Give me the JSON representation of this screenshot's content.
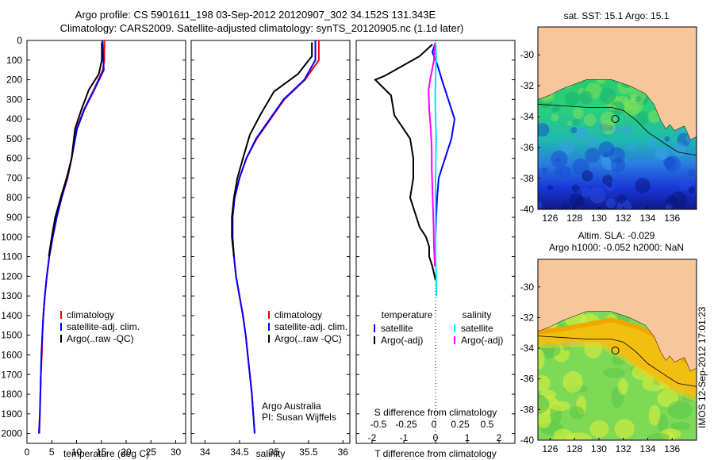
{
  "titles": {
    "line1": "Argo profile: CS 5901611_198 03-Sep-2012 20120907_302 34.152S 131.343E",
    "line2": "Climatology: CARS2009. Satellite-adjusted climatology: synTS_20120905.nc (1.1d later)"
  },
  "footer_stamp": "IMOS 12-Sep-2012 17:01:23",
  "colors": {
    "climatology": "#ff0000",
    "satellite": "#0000ff",
    "argo": "#000000",
    "sal_satellite": "#00e5ff",
    "sal_argo": "#ff00ff",
    "land": "#f7c69b"
  },
  "chart_data": [
    {
      "type": "line",
      "panel": "temperature",
      "xlabel": "temperature (deg C)",
      "ylabel": "",
      "xlim": [
        0,
        32
      ],
      "ylim": [
        0,
        2050
      ],
      "y_reversed": true,
      "xticks": [
        0,
        5,
        10,
        15,
        20,
        25,
        30
      ],
      "yticks": [
        0,
        100,
        200,
        300,
        400,
        500,
        600,
        700,
        800,
        900,
        1000,
        1100,
        1200,
        1300,
        1400,
        1500,
        1600,
        1700,
        1800,
        1900,
        2000
      ],
      "legend": [
        "climatology",
        "satellite-adj. clim.",
        "Argo(..raw -QC)"
      ],
      "series": [
        {
          "name": "climatology",
          "color": "#ff0000",
          "points": [
            [
              15.6,
              0
            ],
            [
              15.6,
              100
            ],
            [
              15.3,
              150
            ],
            [
              13.5,
              250
            ],
            [
              11.5,
              350
            ],
            [
              10,
              450
            ],
            [
              9,
              600
            ],
            [
              8.2,
              700
            ],
            [
              7,
              800
            ],
            [
              6,
              900
            ],
            [
              5.2,
              1000
            ],
            [
              4.5,
              1100
            ],
            [
              4,
              1200
            ],
            [
              3.6,
              1300
            ],
            [
              3.3,
              1400
            ],
            [
              3.1,
              1500
            ],
            [
              3,
              1600
            ],
            [
              2.8,
              1700
            ],
            [
              2.7,
              1800
            ],
            [
              2.6,
              1900
            ],
            [
              2.5,
              2000
            ]
          ]
        },
        {
          "name": "satellite-adj. clim.",
          "color": "#0000ff",
          "points": [
            [
              15.2,
              0
            ],
            [
              15.4,
              100
            ],
            [
              15.5,
              150
            ],
            [
              13.6,
              250
            ],
            [
              11.6,
              350
            ],
            [
              10.1,
              450
            ],
            [
              9,
              600
            ],
            [
              8.1,
              700
            ],
            [
              7,
              800
            ],
            [
              6,
              900
            ],
            [
              5.2,
              1000
            ],
            [
              4.5,
              1100
            ],
            [
              4,
              1200
            ],
            [
              3.6,
              1300
            ],
            [
              3.3,
              1400
            ],
            [
              3.1,
              1500
            ],
            [
              2.9,
              1600
            ],
            [
              2.8,
              1700
            ],
            [
              2.7,
              1800
            ],
            [
              2.6,
              1900
            ],
            [
              2.4,
              2000
            ]
          ]
        },
        {
          "name": "Argo(..raw -QC)",
          "color": "#000000",
          "points": [
            [
              15.1,
              10
            ],
            [
              15.1,
              100
            ],
            [
              14.5,
              170
            ],
            [
              12.5,
              250
            ],
            [
              11,
              350
            ],
            [
              9.7,
              450
            ],
            [
              9,
              600
            ],
            [
              8,
              700
            ],
            [
              6.8,
              800
            ],
            [
              5.7,
              900
            ],
            [
              5,
              1000
            ],
            [
              4.4,
              1100
            ]
          ]
        }
      ]
    },
    {
      "type": "line",
      "panel": "salinity",
      "xlabel": "salinity",
      "ylabel": "",
      "xlim": [
        33.8,
        36.1
      ],
      "ylim": [
        0,
        2050
      ],
      "y_reversed": true,
      "xticks": [
        34,
        34.5,
        35,
        35.5,
        36
      ],
      "legend": [
        "climatology",
        "satellite-adj. clim.",
        "Argo(..raw -QC)"
      ],
      "annotations": [
        "Argo Australia",
        "PI: Susan Wijffels"
      ],
      "series": [
        {
          "name": "climatology",
          "color": "#ff0000",
          "points": [
            [
              35.65,
              0
            ],
            [
              35.65,
              100
            ],
            [
              35.45,
              200
            ],
            [
              35.15,
              300
            ],
            [
              34.95,
              400
            ],
            [
              34.75,
              500
            ],
            [
              34.6,
              600
            ],
            [
              34.5,
              700
            ],
            [
              34.43,
              800
            ],
            [
              34.4,
              900
            ],
            [
              34.4,
              1000
            ],
            [
              34.42,
              1100
            ],
            [
              34.45,
              1200
            ],
            [
              34.5,
              1300
            ],
            [
              34.55,
              1400
            ],
            [
              34.59,
              1500
            ],
            [
              34.62,
              1600
            ],
            [
              34.65,
              1700
            ],
            [
              34.68,
              1800
            ],
            [
              34.7,
              1900
            ],
            [
              34.72,
              2000
            ]
          ]
        },
        {
          "name": "satellite-adj. clim.",
          "color": "#0000ff",
          "points": [
            [
              35.6,
              0
            ],
            [
              35.6,
              100
            ],
            [
              35.44,
              200
            ],
            [
              35.14,
              300
            ],
            [
              34.94,
              400
            ],
            [
              34.74,
              500
            ],
            [
              34.6,
              600
            ],
            [
              34.5,
              700
            ],
            [
              34.43,
              800
            ],
            [
              34.4,
              900
            ],
            [
              34.4,
              1000
            ],
            [
              34.42,
              1100
            ],
            [
              34.45,
              1200
            ],
            [
              34.5,
              1300
            ],
            [
              34.55,
              1400
            ],
            [
              34.59,
              1500
            ],
            [
              34.62,
              1600
            ],
            [
              34.65,
              1700
            ],
            [
              34.68,
              1800
            ],
            [
              34.7,
              1900
            ],
            [
              34.72,
              2000
            ]
          ]
        },
        {
          "name": "Argo(..raw -QC)",
          "color": "#000000",
          "points": [
            [
              35.55,
              10
            ],
            [
              35.55,
              80
            ],
            [
              35.35,
              170
            ],
            [
              35,
              260
            ],
            [
              34.8,
              380
            ],
            [
              34.65,
              480
            ],
            [
              34.55,
              600
            ],
            [
              34.47,
              700
            ],
            [
              34.42,
              800
            ],
            [
              34.39,
              900
            ],
            [
              34.39,
              1000
            ],
            [
              34.42,
              1100
            ]
          ]
        }
      ]
    },
    {
      "type": "line",
      "panel": "difference",
      "xlabel": "T difference from climatology",
      "xlabel_top": "S difference from climatology",
      "xlim": [
        -2.5,
        2.5
      ],
      "ylim": [
        0,
        2050
      ],
      "y_reversed": true,
      "xticks": [
        -2,
        -1,
        0,
        1,
        2
      ],
      "xticks_S": [
        "-0.5",
        "-0.25",
        "0",
        "0.25",
        "0.5"
      ],
      "legend": {
        "temperature": [
          "satellite",
          "Argo(-adj)"
        ],
        "salinity": [
          "satellite",
          "Argo(-adj)"
        ],
        "header_t": "temperature",
        "header_s": "salinity"
      },
      "series": [
        {
          "name": "temperature satellite",
          "color": "#0000ff",
          "points": [
            [
              0,
              10
            ],
            [
              -0.1,
              60
            ],
            [
              0.05,
              120
            ],
            [
              0.2,
              200
            ],
            [
              0.4,
              300
            ],
            [
              0.6,
              400
            ],
            [
              0.5,
              500
            ],
            [
              0.3,
              600
            ],
            [
              0.1,
              700
            ],
            [
              0.05,
              800
            ],
            [
              0.02,
              900
            ],
            [
              0,
              1000
            ],
            [
              0,
              1100
            ]
          ]
        },
        {
          "name": "temperature Argo(-adj)",
          "color": "#000000",
          "points": [
            [
              -0.1,
              20
            ],
            [
              -0.5,
              80
            ],
            [
              -1.6,
              180
            ],
            [
              -1.9,
              200
            ],
            [
              -1.4,
              280
            ],
            [
              -1.3,
              380
            ],
            [
              -0.8,
              500
            ],
            [
              -0.7,
              600
            ],
            [
              -0.7,
              700
            ],
            [
              -0.8,
              800
            ],
            [
              -0.7,
              850
            ],
            [
              -0.6,
              900
            ],
            [
              -0.5,
              950
            ],
            [
              -0.3,
              1000
            ],
            [
              -0.2,
              1050
            ],
            [
              -0.2,
              1100
            ],
            [
              -0.1,
              1150
            ],
            [
              0,
              1220
            ]
          ]
        },
        {
          "name": "salinity satellite",
          "color": "#00e5ff",
          "points": [
            [
              0,
              10
            ],
            [
              0.02,
              80
            ],
            [
              0,
              200
            ],
            [
              -0.01,
              300
            ],
            [
              0,
              400
            ],
            [
              0.02,
              500
            ],
            [
              0.01,
              600
            ],
            [
              0,
              700
            ],
            [
              0,
              800
            ],
            [
              0,
              900
            ],
            [
              0,
              1000
            ],
            [
              0,
              1100
            ],
            [
              0.02,
              1200
            ],
            [
              0.03,
              1300
            ]
          ]
        },
        {
          "name": "salinity Argo(-adj)",
          "color": "#ff00ff",
          "points": [
            [
              -0.02,
              20
            ],
            [
              -0.05,
              100
            ],
            [
              -0.17,
              200
            ],
            [
              -0.22,
              250
            ],
            [
              -0.2,
              350
            ],
            [
              -0.15,
              450
            ],
            [
              -0.12,
              550
            ],
            [
              -0.12,
              650
            ],
            [
              -0.1,
              750
            ],
            [
              -0.08,
              850
            ],
            [
              -0.06,
              950
            ],
            [
              -0.05,
              1050
            ],
            [
              -0.02,
              1150
            ]
          ]
        }
      ]
    },
    {
      "type": "heatmap",
      "panel": "map-sst",
      "title": "sat. SST: 15.1  Argo: 15.1",
      "xticks": [
        126,
        128,
        130,
        132,
        134,
        136
      ],
      "yticks": [
        -30,
        -32,
        -34,
        -36,
        -38,
        -40
      ],
      "xlim": [
        125,
        138
      ],
      "ylim": [
        -40,
        -28.2
      ],
      "float_position": [
        131.343,
        -34.152
      ]
    },
    {
      "type": "heatmap",
      "panel": "map-sla",
      "title_lines": [
        "Altim. SLA: -0.029",
        "Argo h1000: -0.052 h2000: NaN"
      ],
      "xticks": [
        126,
        128,
        130,
        132,
        134,
        136
      ],
      "yticks": [
        -30,
        -32,
        -34,
        -36,
        -38,
        -40
      ],
      "xlim": [
        125,
        138
      ],
      "ylim": [
        -40,
        -28.2
      ],
      "float_position": [
        131.343,
        -34.152
      ]
    }
  ]
}
